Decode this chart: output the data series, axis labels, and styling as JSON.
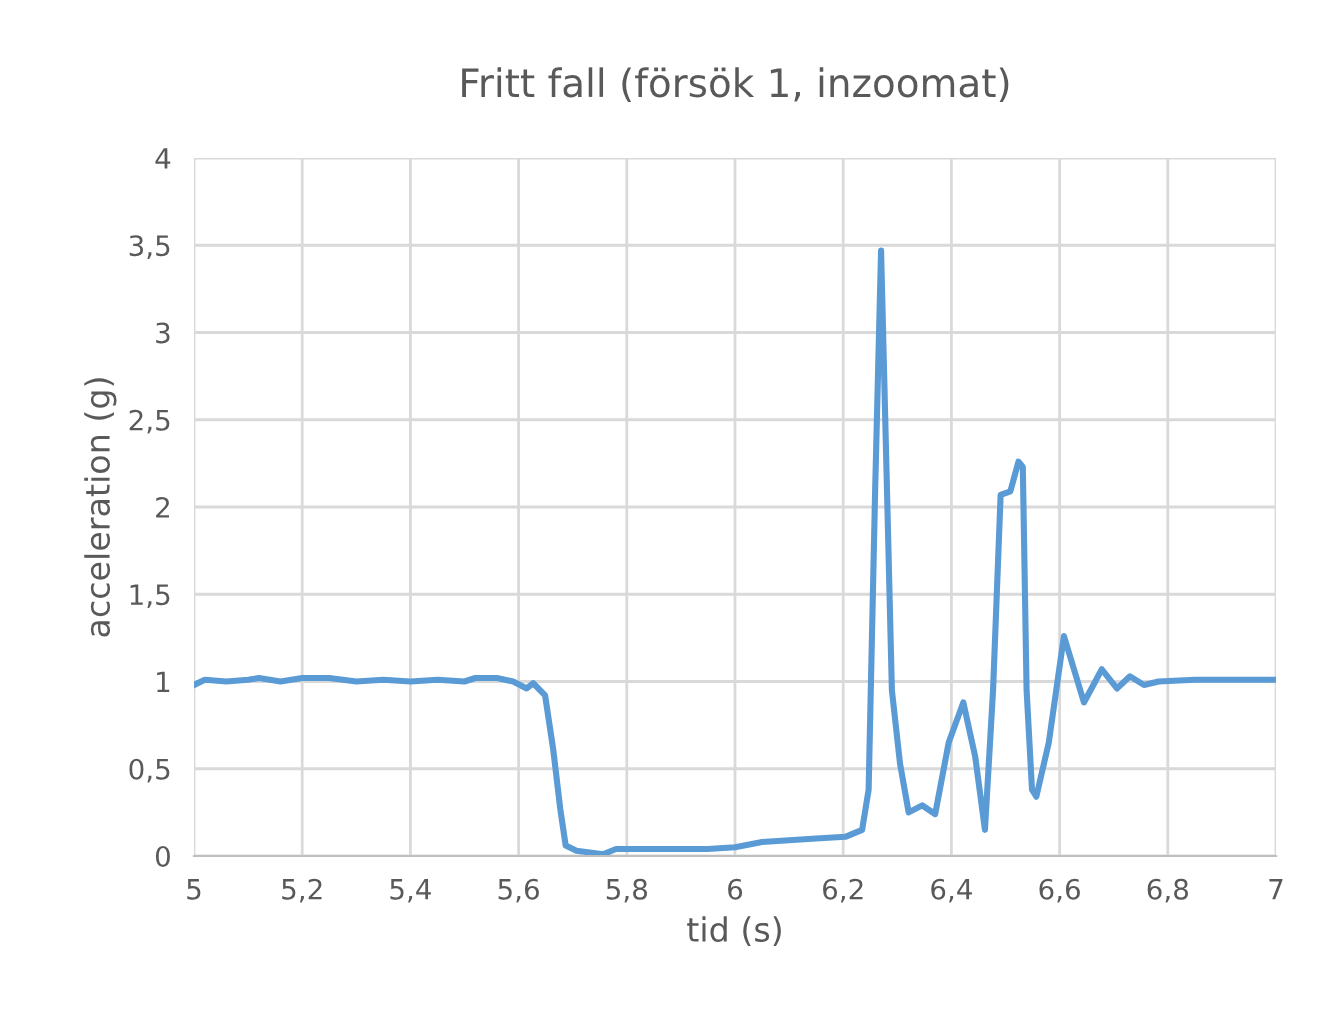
{
  "chart_data": {
    "type": "line",
    "title": "Fritt fall (försök 1, inzoomat)",
    "xlabel": "tid (s)",
    "ylabel": "acceleration (g)",
    "series": [
      {
        "color": "#5b9bd5",
        "x": [
          5.0,
          5.02,
          5.06,
          5.1,
          5.12,
          5.16,
          5.2,
          5.25,
          5.3,
          5.35,
          5.4,
          5.45,
          5.5,
          5.52,
          5.56,
          5.59,
          5.615,
          5.627,
          5.649,
          5.664,
          5.677,
          5.687,
          5.707,
          5.756,
          5.78,
          5.86,
          5.95,
          6.0,
          6.05,
          6.1,
          6.15,
          6.204,
          6.235,
          6.247,
          6.259,
          6.27,
          6.281,
          6.29,
          6.305,
          6.321,
          6.346,
          6.37,
          6.395,
          6.422,
          6.444,
          6.462,
          6.477,
          6.491,
          6.509,
          6.524,
          6.532,
          6.539,
          6.549,
          6.557,
          6.58,
          6.608,
          6.645,
          6.678,
          6.706,
          6.73,
          6.756,
          6.783,
          6.85,
          6.92,
          7.0
        ],
        "values": [
          0.98,
          1.01,
          1.0,
          1.01,
          1.02,
          1.0,
          1.02,
          1.02,
          1.0,
          1.01,
          1.0,
          1.01,
          1.0,
          1.02,
          1.02,
          1.0,
          0.96,
          0.99,
          0.92,
          0.61,
          0.27,
          0.06,
          0.03,
          0.01,
          0.04,
          0.04,
          0.04,
          0.05,
          0.08,
          0.09,
          0.1,
          0.11,
          0.15,
          0.38,
          2.09,
          3.47,
          2.09,
          0.95,
          0.53,
          0.25,
          0.29,
          0.24,
          0.65,
          0.88,
          0.57,
          0.15,
          0.95,
          2.07,
          2.09,
          2.26,
          2.23,
          0.95,
          0.38,
          0.34,
          0.65,
          1.26,
          0.88,
          1.07,
          0.96,
          1.03,
          0.98,
          1.0,
          1.01,
          1.01,
          1.01
        ]
      }
    ],
    "xlim": [
      5,
      7
    ],
    "ylim": [
      0,
      4
    ],
    "xticks": [
      5,
      {
        "value": 5.2,
        "label": "5,2"
      },
      {
        "value": 5.4,
        "label": "5,4"
      },
      {
        "value": 5.6,
        "label": "5,6"
      },
      {
        "value": 5.8,
        "label": "5,8"
      },
      6,
      {
        "value": 6.2,
        "label": "6,2"
      },
      {
        "value": 6.4,
        "label": "6,4"
      },
      {
        "value": 6.6,
        "label": "6,6"
      },
      {
        "value": 6.8,
        "label": "6,8"
      },
      7
    ],
    "yticks": [
      0,
      {
        "value": 0.5,
        "label": "0,5"
      },
      1,
      {
        "value": 1.5,
        "label": "1,5"
      },
      2,
      {
        "value": 2.5,
        "label": "2,5"
      },
      3,
      {
        "value": 3.5,
        "label": "3,5"
      },
      4
    ],
    "grid": true,
    "marker": "none",
    "line_style": "solid"
  }
}
